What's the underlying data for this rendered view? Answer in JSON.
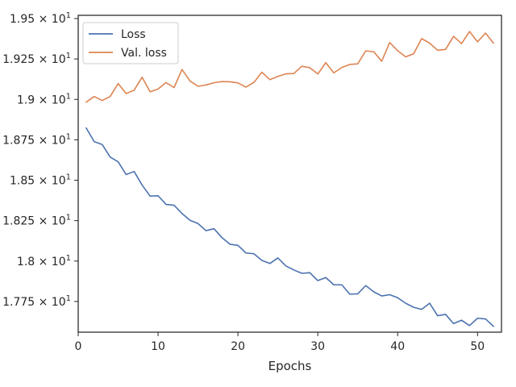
{
  "chart_data": {
    "type": "line",
    "title": "",
    "xlabel": "Epochs",
    "ylabel": "",
    "xlim": [
      0,
      53
    ],
    "ylim": [
      17.56,
      19.52
    ],
    "grid": false,
    "legend_position": "top-left",
    "x_ticks": [
      0,
      10,
      20,
      30,
      40,
      50
    ],
    "x_tick_labels": [
      "0",
      "10",
      "20",
      "30",
      "40",
      "50"
    ],
    "y_ticks": [
      17.75,
      18.0,
      18.25,
      18.5,
      18.75,
      19.0,
      19.25,
      19.5
    ],
    "y_tick_labels": [
      "1.775",
      "1.8",
      "1.825",
      "1.85",
      "1.875",
      "1.9",
      "1.925",
      "1.95"
    ],
    "y_tick_suffix": "× 10",
    "y_tick_exponent": "1",
    "x": [
      1,
      2,
      3,
      4,
      5,
      6,
      7,
      8,
      9,
      10,
      11,
      12,
      13,
      14,
      15,
      16,
      17,
      18,
      19,
      20,
      21,
      22,
      23,
      24,
      25,
      26,
      27,
      28,
      29,
      30,
      31,
      32,
      33,
      34,
      35,
      36,
      37,
      38,
      39,
      40,
      41,
      42,
      43,
      44,
      45,
      46,
      47,
      48,
      49,
      50,
      51,
      52
    ],
    "series": [
      {
        "name": "Loss",
        "color": "#4c72b0",
        "values": [
          18.823,
          18.739,
          18.721,
          18.643,
          18.614,
          18.535,
          18.554,
          18.47,
          18.402,
          18.404,
          18.35,
          18.345,
          18.294,
          18.252,
          18.232,
          18.188,
          18.2,
          18.145,
          18.104,
          18.097,
          18.05,
          18.045,
          18.004,
          17.985,
          18.019,
          17.97,
          17.945,
          17.924,
          17.928,
          17.879,
          17.898,
          17.853,
          17.853,
          17.795,
          17.797,
          17.848,
          17.81,
          17.784,
          17.792,
          17.773,
          17.739,
          17.714,
          17.701,
          17.739,
          17.662,
          17.67,
          17.613,
          17.634,
          17.601,
          17.646,
          17.642,
          17.596
        ]
      },
      {
        "name": "Val. loss",
        "color": "#dd8452",
        "values": [
          18.983,
          19.018,
          18.993,
          19.018,
          19.098,
          19.036,
          19.057,
          19.137,
          19.047,
          19.064,
          19.104,
          19.073,
          19.185,
          19.114,
          19.081,
          19.089,
          19.103,
          19.11,
          19.109,
          19.102,
          19.076,
          19.105,
          19.168,
          19.122,
          19.142,
          19.158,
          19.16,
          19.205,
          19.196,
          19.157,
          19.227,
          19.164,
          19.197,
          19.216,
          19.22,
          19.3,
          19.295,
          19.236,
          19.352,
          19.301,
          19.263,
          19.282,
          19.376,
          19.348,
          19.304,
          19.309,
          19.39,
          19.345,
          19.42,
          19.356,
          19.41,
          19.348
        ]
      }
    ]
  }
}
